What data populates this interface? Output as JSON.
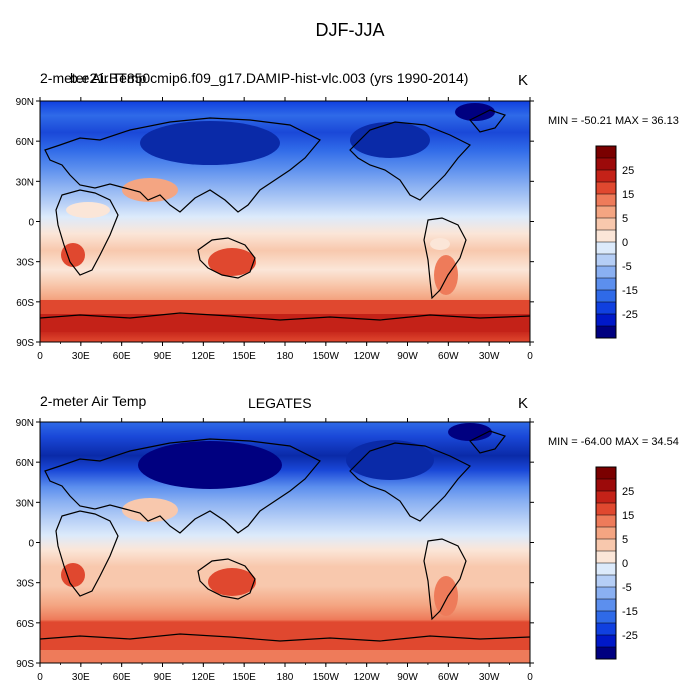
{
  "title": "DJF-JJA",
  "lat_ticks": [
    "90N",
    "60N",
    "30N",
    "0",
    "30S",
    "60S",
    "90S"
  ],
  "lon_ticks": [
    "0",
    "30E",
    "60E",
    "90E",
    "120E",
    "150E",
    "180",
    "150W",
    "120W",
    "90W",
    "60W",
    "30W",
    "0"
  ],
  "legend_labels": [
    "25",
    "15",
    "5",
    "0",
    "-5",
    "-15",
    "-25"
  ],
  "colors": [
    "#000080",
    "#0018c8",
    "#1040e0",
    "#2f6ae8",
    "#5c8fee",
    "#8ab0f2",
    "#b5cef6",
    "#dceafb",
    "#fbe6d8",
    "#f8c8ad",
    "#f4a582",
    "#ee7b5a",
    "#e0482f",
    "#c42218",
    "#9c0a0a",
    "#7a0000"
  ],
  "panels": [
    {
      "left_label": "2-meter Air Temp",
      "center_label": "b.e21.BT850cmip6.f09_g17.DAMIP-hist-vlc.003 (yrs 1990-2014)",
      "right_label": "K",
      "min_max": "MIN = -50.21  MAX =  36.13"
    },
    {
      "left_label": "2-meter Air Temp",
      "center_label": "LEGATES",
      "right_label": "K",
      "min_max": "MIN = -64.00  MAX =  34.54"
    }
  ]
}
